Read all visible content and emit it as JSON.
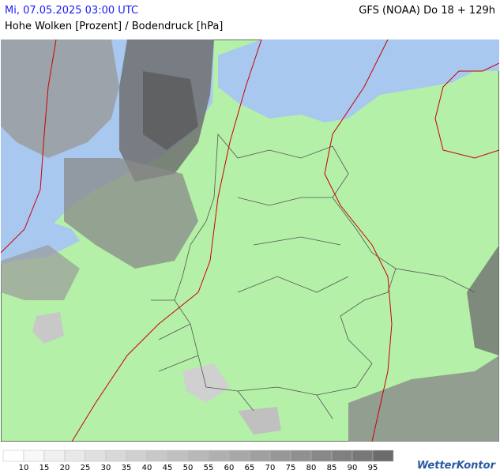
{
  "header": {
    "date": "Mi, 07.05.2025 03:00 UTC",
    "model": "GFS (NOAA) Do 18 + 129h",
    "subtitle": "Hohe Wolken [Prozent] / Bodendruck [hPa]"
  },
  "legend": {
    "labels": [
      10,
      15,
      20,
      25,
      30,
      35,
      40,
      45,
      50,
      55,
      60,
      65,
      70,
      75,
      80,
      85,
      90,
      95
    ],
    "colors": [
      "#ffffff",
      "#f8f8f8",
      "#f0f0f0",
      "#e8e8e8",
      "#e0e0e0",
      "#d8d8d8",
      "#d0d0d0",
      "#c8c8c8",
      "#c0c0c0",
      "#b8b8b8",
      "#b0b0b0",
      "#a8a8a8",
      "#a0a0a0",
      "#989898",
      "#909090",
      "#888888",
      "#808080",
      "#787878",
      "#6c6c6c"
    ]
  },
  "logo": "WetterKontor"
}
